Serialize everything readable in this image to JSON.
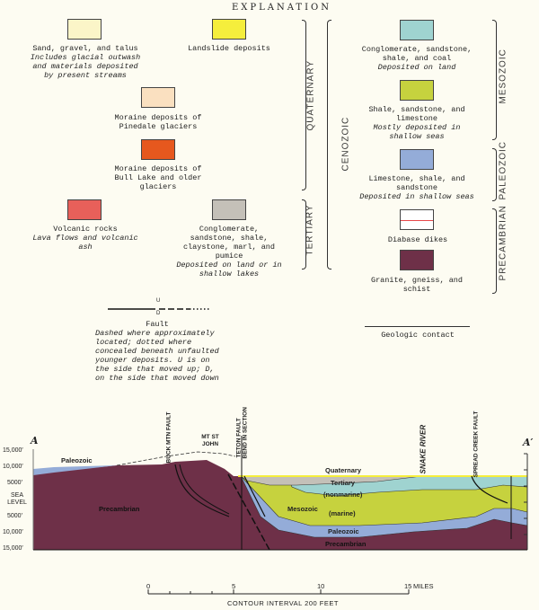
{
  "title": "EXPLANATION",
  "units": [
    {
      "name": "Sand, gravel, and talus",
      "desc": "Includes glacial outwash and materials deposited by present streams",
      "color": "#fbf5c8"
    },
    {
      "name": "Landslide deposits",
      "desc": "",
      "color": "#f5ee3c"
    },
    {
      "name": "Moraine deposits of Pinedale glaciers",
      "desc": "",
      "color": "#fae0c0"
    },
    {
      "name": "Moraine deposits of Bull Lake and older glaciers",
      "desc": "",
      "color": "#e6581e"
    },
    {
      "name": "Volcanic rocks",
      "desc": "Lava flows and volcanic ash",
      "color": "#e8605a"
    },
    {
      "name": "Conglomerate, sandstone, shale, claystone, marl, and pumice",
      "desc": "Deposited on land or in shallow lakes",
      "color": "#c4c0b8"
    },
    {
      "name": "Conglomerate, sandstone, shale, and coal",
      "desc": "Deposited on land",
      "color": "#9fd3d0"
    },
    {
      "name": "Shale, sandstone, and limestone",
      "desc": "Mostly deposited in shallow seas",
      "color": "#c6d23e"
    },
    {
      "name": "Limestone, shale, and sandstone",
      "desc": "Deposited in shallow seas",
      "color": "#94acd8"
    },
    {
      "name": "Diabase dikes",
      "desc": "",
      "color": "#e8484a"
    },
    {
      "name": "Granite, gneiss, and schist",
      "desc": "",
      "color": "#6e3048"
    }
  ],
  "eras": {
    "quaternary": "QUATERNARY",
    "tertiary": "TERTIARY",
    "cenozoic": "CENOZOIC",
    "mesozoic": "MESOZOIC",
    "paleozoic": "PALEOZOIC",
    "precambrian": "PRECAMBRIAN"
  },
  "fault": {
    "up": "U",
    "down": "D",
    "label": "Fault",
    "desc": "Dashed where approximately located; dotted where concealed beneath unfaulted younger deposits. U is on the side that moved up; D, on the side that moved down"
  },
  "contact": {
    "label": "Geologic contact"
  },
  "section": {
    "start": "A",
    "end": "A′",
    "y_ticks": [
      "15,000′",
      "10,000′",
      "5000′",
      "SEA LEVEL",
      "5000′",
      "10,000′",
      "15,000′"
    ],
    "labels": {
      "paleozoic_left": "Paleozoic",
      "precambrian_left": "Precambrian",
      "quaternary": "Quaternary",
      "tertiary": "Tertiary",
      "nonmarine": "(nonmarine)",
      "mesozoic": "Mesozoic",
      "marine": "(marine)",
      "paleozoic": "Paleozoic",
      "precambrian": "Precambrian"
    },
    "features": {
      "buck_mtn": "BUCK MTN FAULT",
      "mt_st_john": "MT ST JOHN",
      "teton": "TETON FAULT",
      "bend": "BEND IN SECTION",
      "snake": "SNAKE RIVER",
      "spread_creek": "SPREAD CREEK FAULT"
    }
  },
  "scale": {
    "ticks": [
      "0",
      "5",
      "10",
      "15"
    ],
    "unit": "MILES",
    "note": "CONTOUR INTERVAL 200 FEET"
  }
}
